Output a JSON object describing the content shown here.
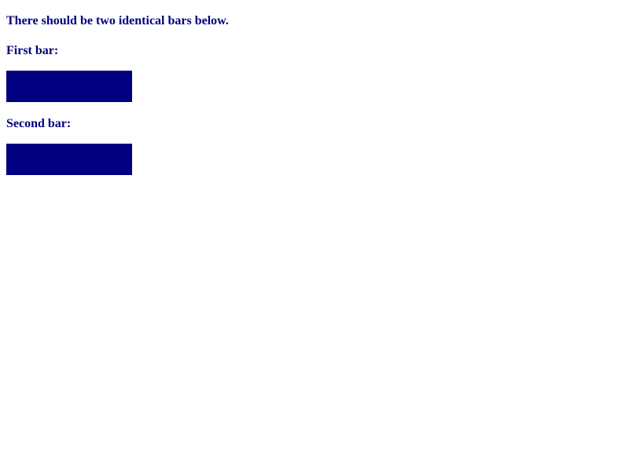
{
  "intro": "There should be two identical bars below.",
  "first": {
    "label": "First bar:"
  },
  "second": {
    "label": "Second bar:"
  },
  "colors": {
    "text": "#000080",
    "bar": "#000080",
    "background": "#ffffff"
  }
}
